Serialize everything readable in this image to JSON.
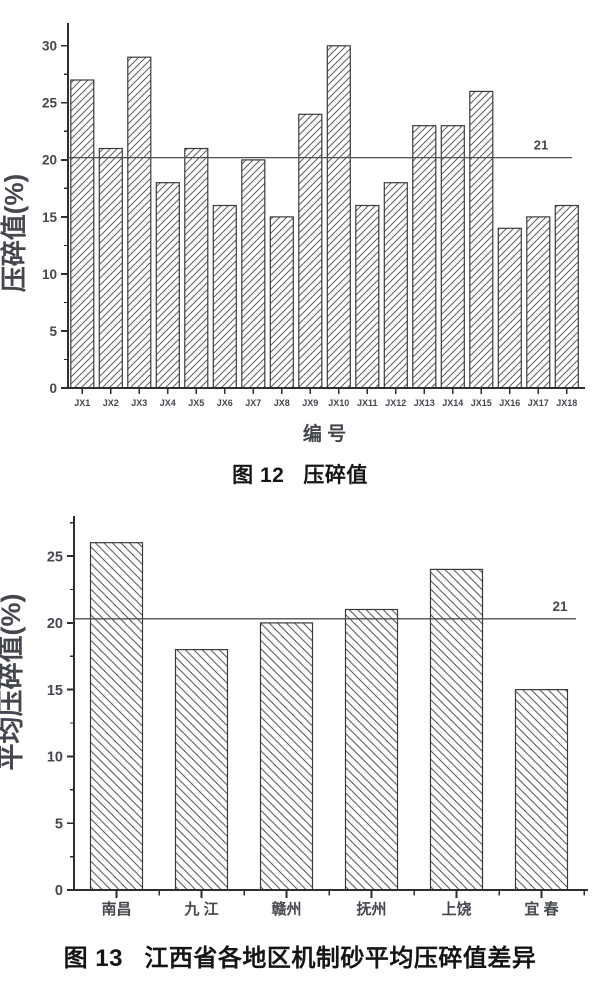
{
  "colors": {
    "background": "#ffffff",
    "axis": "#2e2e2e",
    "text": "#45474e",
    "caption_text": "#151515",
    "bar_outline": "#3a3a3a",
    "hatch": "#5f5f5f",
    "ref_line": "#4f4f4f"
  },
  "figures": [
    {
      "caption": "图 12   压碎值"
    },
    {
      "caption": "图 13   江西省各地区机制砂平均压碎值差异"
    }
  ],
  "chart_data": [
    {
      "type": "bar",
      "title": "压碎值",
      "categories": [
        "JX1",
        "JX2",
        "JX3",
        "JX4",
        "JX5",
        "JX6",
        "JX7",
        "JX8",
        "JX9",
        "JX10",
        "JX11",
        "JX12",
        "JX13",
        "JX14",
        "JX15",
        "JX16",
        "JX17",
        "JX18"
      ],
      "values": [
        27,
        21,
        29,
        18,
        21,
        16,
        20,
        15,
        24,
        30,
        16,
        18,
        23,
        23,
        26,
        14,
        15,
        16
      ],
      "xlabel": "编 号",
      "ylabel": "压碎值(%)",
      "ylim": [
        0,
        32
      ],
      "yticks": [
        0,
        5,
        10,
        15,
        20,
        25,
        30
      ],
      "minor_step": 2.5,
      "grid": false,
      "legend": "none",
      "hatch": "forward",
      "ref_line": {
        "value": 21,
        "label": "21",
        "drawn_at": 20.2
      }
    },
    {
      "type": "bar",
      "title": "江西省各地区机制砂平均压碎值差异",
      "categories": [
        "南昌",
        "九 江",
        "赣州",
        "抚州",
        "上饶",
        "宜 春"
      ],
      "values": [
        26,
        18,
        20,
        21,
        24,
        15
      ],
      "xlabel": "",
      "ylabel": "平均压碎值(%)",
      "ylim": [
        0,
        28
      ],
      "yticks": [
        0,
        5,
        10,
        15,
        20,
        25
      ],
      "minor_step": 2.5,
      "grid": false,
      "legend": "none",
      "hatch": "backward",
      "ref_line": {
        "value": 21,
        "label": "21",
        "drawn_at": 20.3
      }
    }
  ]
}
